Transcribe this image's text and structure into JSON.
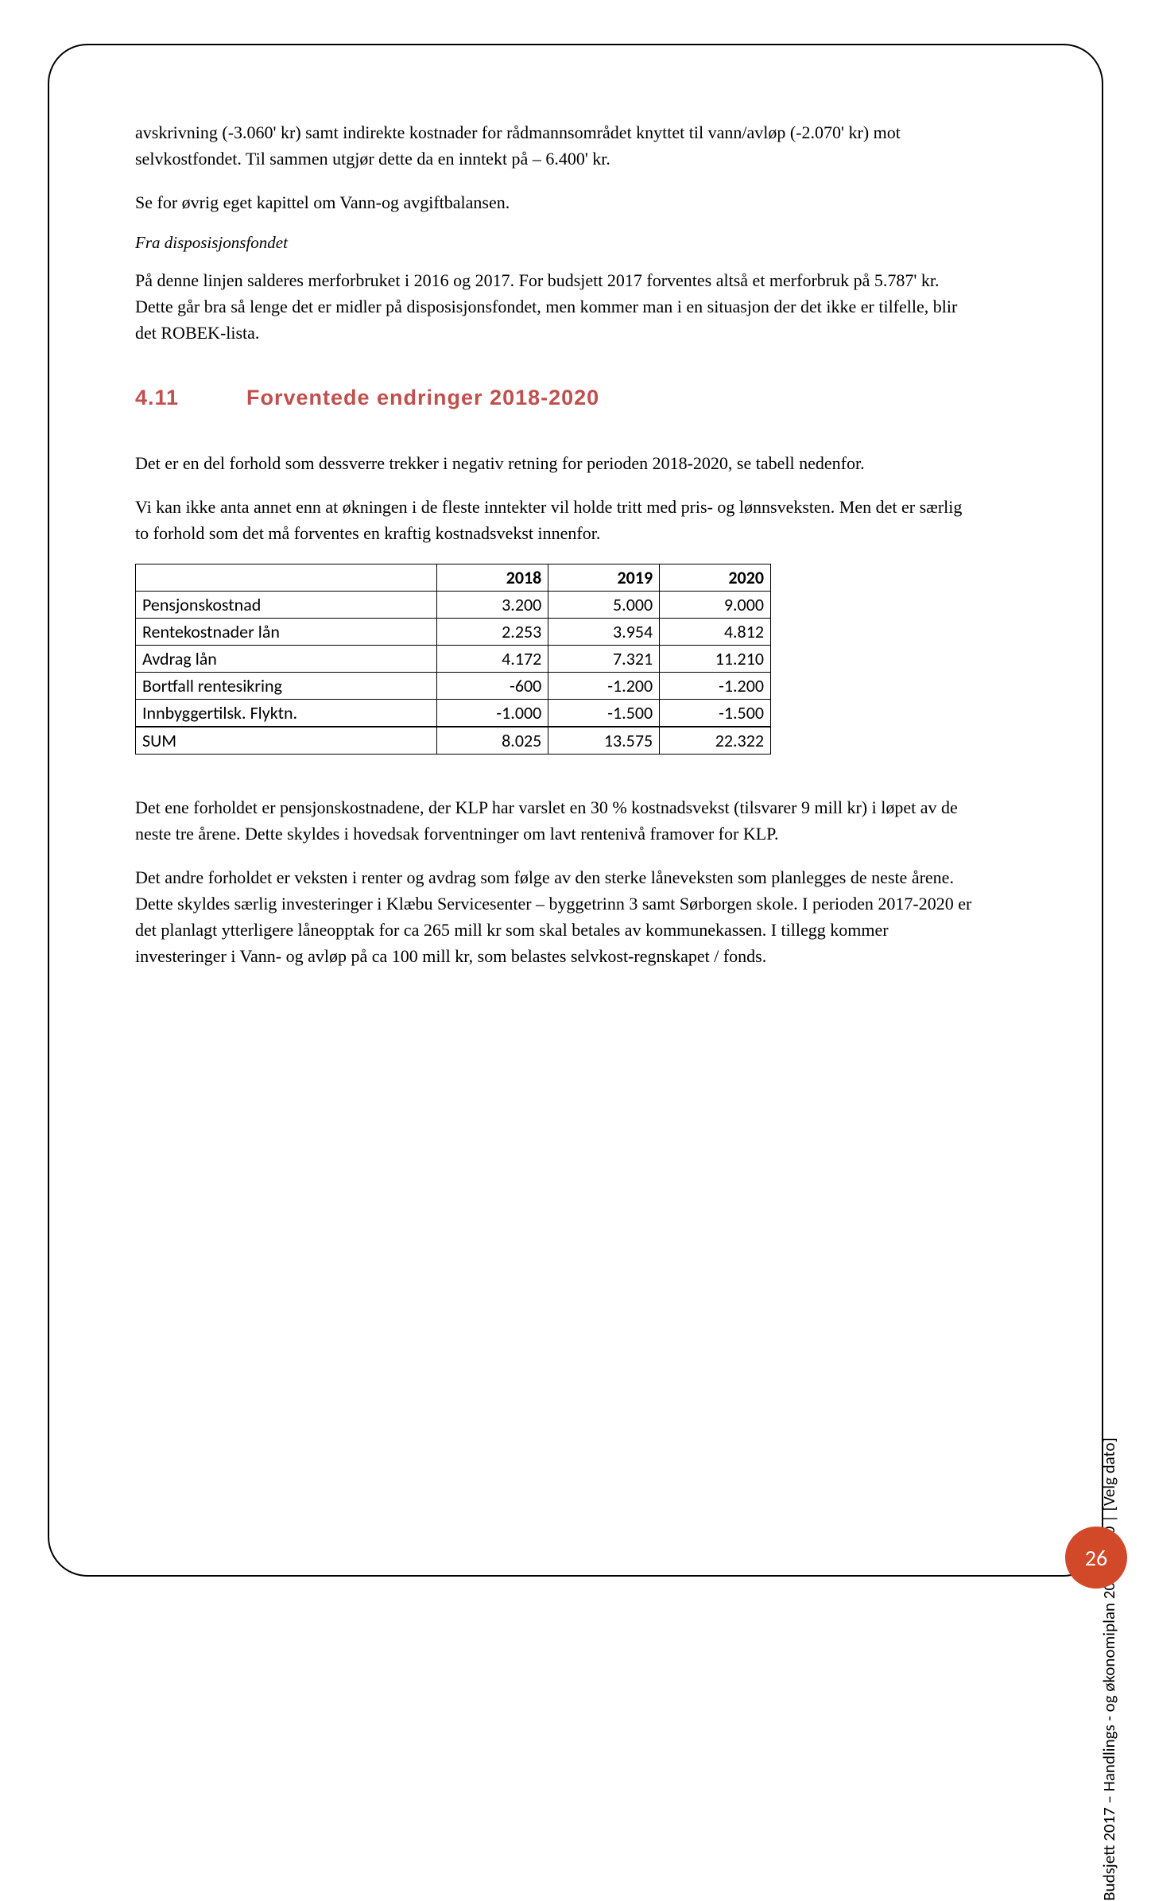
{
  "paragraphs": {
    "p1": "avskrivning (-3.060' kr) samt indirekte kostnader for rådmannsområdet knyttet til vann/avløp (-2.070' kr) mot selvkostfondet. Til sammen utgjør dette da en inntekt på – 6.400' kr.",
    "p2": "Se for øvrig eget kapittel om Vann-og avgiftbalansen.",
    "sub_italic": "Fra disposisjonsfondet",
    "p3": "På denne linjen salderes merforbruket i 2016 og 2017. For budsjett 2017 forventes altså et merforbruk på 5.787' kr. Dette går bra så lenge det er midler på disposisjonsfondet, men kommer man i en situasjon der det ikke er tilfelle, blir det ROBEK-lista.",
    "p4": "Det er en del forhold som dessverre trekker i negativ retning for perioden 2018-2020, se tabell nedenfor.",
    "p5": "Vi kan ikke anta annet enn at økningen i de fleste inntekter vil holde tritt med pris- og lønnsveksten. Men det er særlig to forhold som det må forventes en kraftig kostnadsvekst innenfor.",
    "p6": "Det ene forholdet er pensjonskostnadene, der KLP har varslet en 30 % kostnadsvekst (tilsvarer 9 mill kr) i løpet av de neste tre årene. Dette skyldes i hovedsak forventninger om lavt rentenivå framover for KLP.",
    "p7": " Det andre forholdet er veksten i renter og avdrag som følge av den sterke låneveksten som planlegges de neste årene. Dette skyldes særlig investeringer i Klæbu Servicesenter – byggetrinn 3 samt Sørborgen skole. I perioden 2017-2020 er det planlagt ytterligere låneopptak for ca 265 mill kr som skal betales av kommunekassen. I tillegg kommer investeringer i Vann- og avløp på ca 100 mill kr, som belastes selvkost-regnskapet / fonds."
  },
  "heading": {
    "number": "4.11",
    "title": "Forventede endringer 2018-2020"
  },
  "table": {
    "headers": [
      "",
      "2018",
      "2019",
      "2020"
    ],
    "rows": [
      [
        "Pensjonskostnad",
        "3.200",
        "5.000",
        "9.000"
      ],
      [
        "Rentekostnader lån",
        "2.253",
        "3.954",
        "4.812"
      ],
      [
        "Avdrag lån",
        "4.172",
        "7.321",
        "11.210"
      ],
      [
        "Bortfall rentesikring",
        "-600",
        "-1.200",
        "-1.200"
      ],
      [
        "Innbyggertilsk. Flyktn.",
        "-1.000",
        "-1.500",
        "-1.500"
      ],
      [
        "SUM",
        "8.025",
        "13.575",
        "22.322"
      ]
    ]
  },
  "side_text": "Budsjett 2017 – Handlings - og økonomiplan 2017-2020 |  [Velg dato]",
  "page_number": "26",
  "colors": {
    "heading": "#c0504d",
    "circle": "#d2492a"
  }
}
